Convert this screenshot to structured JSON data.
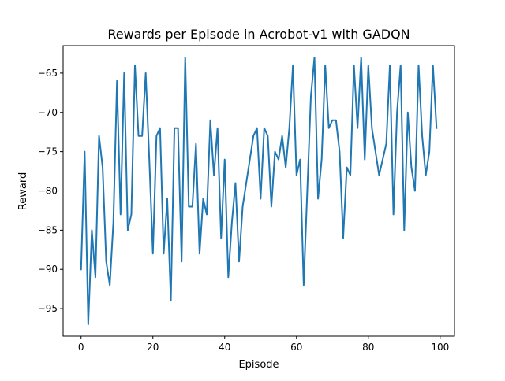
{
  "colors": {
    "line": "#1f77b4",
    "axis": "#000000",
    "background": "#ffffff"
  },
  "chart_data": {
    "type": "line",
    "title": "Rewards per Episode in Acrobot-v1 with GADQN",
    "xlabel": "Episode",
    "ylabel": "Reward",
    "xlim": [
      -5,
      104
    ],
    "ylim": [
      -98.5,
      -61.5
    ],
    "xticks": [
      0,
      20,
      40,
      60,
      80,
      100
    ],
    "yticks": [
      -95,
      -90,
      -85,
      -80,
      -75,
      -70,
      -65
    ],
    "xtick_labels": [
      "0",
      "20",
      "40",
      "60",
      "80",
      "100"
    ],
    "ytick_labels": [
      "−95",
      "−90",
      "−85",
      "−80",
      "−75",
      "−70",
      "−65"
    ],
    "grid": false,
    "series": [
      {
        "x": [
          0,
          1,
          2,
          3,
          4,
          5,
          6,
          7,
          8,
          9,
          10,
          11,
          12,
          13,
          14,
          15,
          16,
          17,
          18,
          19,
          20,
          21,
          22,
          23,
          24,
          25,
          26,
          27,
          28,
          29,
          30,
          31,
          32,
          33,
          34,
          35,
          36,
          37,
          38,
          39,
          40,
          41,
          42,
          43,
          44,
          45,
          46,
          47,
          48,
          49,
          50,
          51,
          52,
          53,
          54,
          55,
          56,
          57,
          58,
          59,
          60,
          61,
          62,
          63,
          64,
          65,
          66,
          67,
          68,
          69,
          70,
          71,
          72,
          73,
          74,
          75,
          76,
          77,
          78,
          79,
          80,
          81,
          82,
          83,
          84,
          85,
          86,
          87,
          88,
          89,
          90,
          91,
          92,
          93,
          94,
          95,
          96,
          97,
          98,
          99
        ],
        "y": [
          -90,
          -75,
          -97,
          -85,
          -91,
          -73,
          -77,
          -89,
          -92,
          -84,
          -66,
          -83,
          -65,
          -85,
          -83,
          -64,
          -73,
          -73,
          -65,
          -76,
          -88,
          -73,
          -72,
          -88,
          -81,
          -94,
          -72,
          -72,
          -89,
          -63,
          -82,
          -82,
          -74,
          -88,
          -81,
          -83,
          -71,
          -78,
          -72,
          -86,
          -76,
          -91,
          -84,
          -79,
          -89,
          -82,
          -79,
          -76,
          -73,
          -72,
          -81,
          -72,
          -73,
          -82,
          -75,
          -76,
          -73,
          -77,
          -72,
          -64,
          -78,
          -76,
          -92,
          -80,
          -68,
          -63,
          -81,
          -76,
          -64,
          -72,
          -71,
          -71,
          -75,
          -86,
          -77,
          -78,
          -64,
          -72,
          -63,
          -76,
          -64,
          -72,
          -75,
          -78,
          -76,
          -74,
          -64,
          -83,
          -70,
          -64,
          -85,
          -70,
          -77,
          -80,
          -64,
          -73,
          -78,
          -75,
          -64,
          -72
        ]
      }
    ]
  }
}
